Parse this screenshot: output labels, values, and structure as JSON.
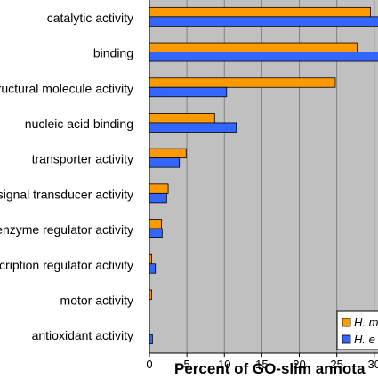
{
  "chart_data": {
    "type": "bar",
    "orientation": "horizontal",
    "categories": [
      "catalytic activity",
      "binding",
      "structural molecule activity",
      "nucleic acid binding",
      "transporter activity",
      "signal transducer activity",
      "enzyme regulator activity",
      "transcription regulator activity",
      "motor activity",
      "antioxidant activity"
    ],
    "series": [
      {
        "name": "H. m",
        "color": "#ff9900",
        "values": [
          29.5,
          27.7,
          24.8,
          8.7,
          4.9,
          2.5,
          1.6,
          0.3,
          0.3,
          0.0
        ]
      },
      {
        "name": "H. e",
        "color": "#3366ff",
        "values": [
          31.5,
          31.5,
          10.3,
          11.6,
          4.0,
          2.3,
          1.7,
          0.8,
          0.0,
          0.4
        ]
      }
    ],
    "xlabel": "Percent of GO-slim annota",
    "xlim": [
      0,
      30.5
    ],
    "xticks": [
      0,
      5,
      10,
      15,
      20,
      25,
      30
    ],
    "grid": true,
    "legend_position": "bottom-right",
    "plot_background": "#c0c0c0"
  }
}
